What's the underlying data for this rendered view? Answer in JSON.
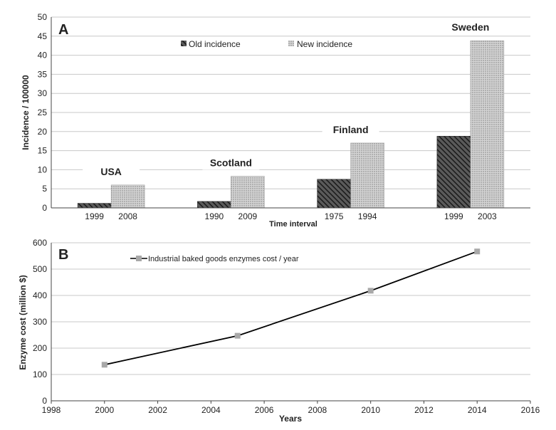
{
  "chart_data": [
    {
      "panel_label": "A",
      "type": "bar",
      "ylabel": "Incidence / 100000",
      "xlabel": "Time interval",
      "ylim": [
        0,
        50
      ],
      "yticks": [
        0,
        5,
        10,
        15,
        20,
        25,
        30,
        35,
        40,
        45,
        50
      ],
      "grid": true,
      "legend": "top-center",
      "series": [
        {
          "name": "Old incidence",
          "color": "#333333",
          "pattern": "diagonal-hatch"
        },
        {
          "name": "New incidence",
          "color": "#c8c8c8",
          "pattern": "dotted"
        }
      ],
      "groups": [
        {
          "name": "USA",
          "old": {
            "year": "1999",
            "value": 1.2
          },
          "new": {
            "year": "2008",
            "value": 6.0
          }
        },
        {
          "name": "Scotland",
          "old": {
            "year": "1990",
            "value": 1.7
          },
          "new": {
            "year": "2009",
            "value": 8.3
          }
        },
        {
          "name": "Finland",
          "old": {
            "year": "1975",
            "value": 7.5
          },
          "new": {
            "year": "1994",
            "value": 17.0
          }
        },
        {
          "name": "Sweden",
          "old": {
            "year": "1999",
            "value": 18.8
          },
          "new": {
            "year": "2003",
            "value": 43.8
          }
        }
      ]
    },
    {
      "panel_label": "B",
      "type": "line",
      "ylabel": "Enzyme cost (million $)",
      "xlabel": "Years",
      "xlim": [
        1998,
        2016
      ],
      "xticks": [
        1998,
        2000,
        2002,
        2004,
        2006,
        2008,
        2010,
        2012,
        2014,
        2016
      ],
      "ylim": [
        0,
        600
      ],
      "yticks": [
        0,
        100,
        200,
        300,
        400,
        500,
        600
      ],
      "grid": true,
      "legend": "top-left",
      "series": [
        {
          "name": "Industrial baked goods enzymes cost / year",
          "color": "#000000",
          "marker_color": "#a8a8a8",
          "x": [
            2000,
            2005,
            2010,
            2014
          ],
          "y": [
            137,
            247,
            418,
            567
          ]
        }
      ]
    }
  ]
}
